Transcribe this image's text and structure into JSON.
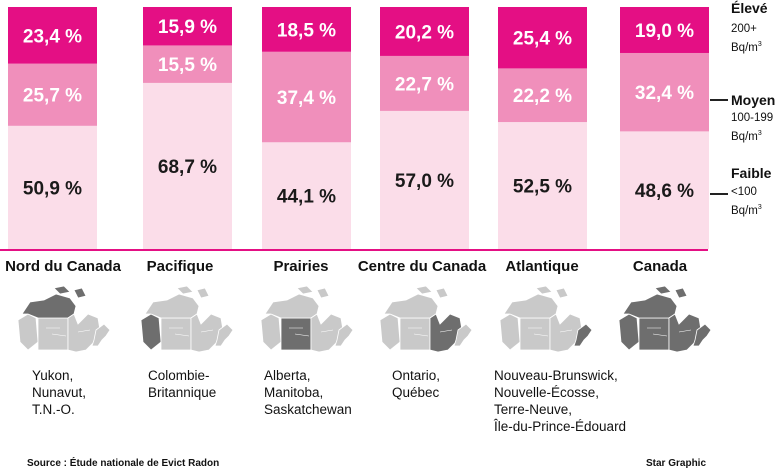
{
  "chart_data": {
    "type": "stacked-bar",
    "categories": [
      "Nord du Canada",
      "Pacifique",
      "Prairies",
      "Centre du Canada",
      "Atlantique",
      "Canada"
    ],
    "series": [
      {
        "name": "Faible",
        "values": [
          50.9,
          68.7,
          44.1,
          57.0,
          52.5,
          48.6
        ],
        "labels": [
          "50,9 %",
          "68,7 %",
          "44,1 %",
          "57,0 %",
          "52,5 %",
          "48,6 %"
        ],
        "color": "#fbdde9",
        "text_color": "#1a1a1a"
      },
      {
        "name": "Moyen",
        "values": [
          25.7,
          15.5,
          37.4,
          22.7,
          22.2,
          32.4
        ],
        "labels": [
          "25,7 %",
          "15,5 %",
          "37,4 %",
          "22,7 %",
          "22,2 %",
          "32,4 %"
        ],
        "color": "#f08fbb",
        "text_color": "#ffffff"
      },
      {
        "name": "Élevé",
        "values": [
          23.4,
          15.9,
          18.5,
          20.2,
          25.4,
          19.0
        ],
        "labels": [
          "23,4 %",
          "15,9 %",
          "18,5 %",
          "20,2 %",
          "25,4 %",
          "19,0 %"
        ],
        "color": "#e40f84",
        "text_color": "#ffffff"
      }
    ],
    "ylim": [
      0,
      100
    ],
    "baseline_color": "#e40f84"
  },
  "legend": [
    {
      "title": "Élevé",
      "line1": "200+",
      "line2": "Bq/m",
      "sup": "3"
    },
    {
      "title": "Moyen",
      "line1": "100-199",
      "line2": "Bq/m",
      "sup": "3"
    },
    {
      "title": "Faible",
      "line1": "<100",
      "line2": "Bq/m",
      "sup": "3"
    }
  ],
  "regions": [
    {
      "name": "Nord du Canada",
      "description": "Yukon,\nNunavut,\nT.N.-O."
    },
    {
      "name": "Pacifique",
      "description": "Colombie-\nBritannique"
    },
    {
      "name": "Prairies",
      "description": "Alberta,\nManitoba,\nSaskatchewan"
    },
    {
      "name": "Centre du Canada",
      "description": "Ontario,\nQuébec"
    },
    {
      "name": "Atlantique",
      "description": "Nouveau-Brunswick,\nNouvelle-Écosse,\nTerre-Neuve,\nÎle-du-Prince-Édouard"
    },
    {
      "name": "Canada",
      "description": ""
    }
  ],
  "footer": {
    "source": "Source : Étude nationale de Evict Radon",
    "credit": "Star Graphic"
  },
  "colors": {
    "map_light": "#c9c9c9",
    "map_dark": "#6e6e6e",
    "map_border": "#ffffff"
  }
}
